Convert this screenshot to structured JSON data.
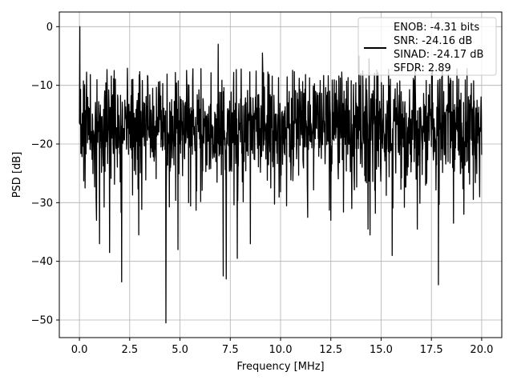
{
  "chart_data": {
    "type": "line",
    "xlabel": "Frequency [MHz]",
    "ylabel": "PSD [dB]",
    "xlim": [
      -1.0,
      21.0
    ],
    "ylim": [
      -53.0,
      2.5
    ],
    "grid": true,
    "x_ticks": [
      0.0,
      2.5,
      5.0,
      7.5,
      10.0,
      12.5,
      15.0,
      17.5,
      20.0
    ],
    "x_tick_labels": [
      "0.0",
      "2.5",
      "5.0",
      "7.5",
      "10.0",
      "12.5",
      "15.0",
      "17.5",
      "20.0"
    ],
    "y_ticks": [
      0,
      -10,
      -20,
      -30,
      -40,
      -50
    ],
    "y_tick_labels": [
      "0",
      "−10",
      "−20",
      "−30",
      "−40",
      "−50"
    ],
    "legend_position": "top-right",
    "series": [
      {
        "legend_lines": [
          "ENOB: -4.31 bits",
          "SNR: -24.16 dB",
          "SINAD: -24.17 dB",
          "SFDR: 2.89"
        ],
        "color": "#000000",
        "x_range": [
          0.0,
          20.0
        ],
        "band_top": -10,
        "band_bottom": -24,
        "peaks": [
          {
            "x": 0.02,
            "y": 0.0
          },
          {
            "x": 6.9,
            "y": -3.0
          },
          {
            "x": 9.1,
            "y": -4.5
          },
          {
            "x": 13.9,
            "y": -5.0
          },
          {
            "x": 14.4,
            "y": -5.5
          }
        ],
        "dips": [
          {
            "x": 0.28,
            "y": -27.5
          },
          {
            "x": 0.85,
            "y": -33.0
          },
          {
            "x": 1.0,
            "y": -37.0
          },
          {
            "x": 1.5,
            "y": -38.5
          },
          {
            "x": 2.1,
            "y": -43.5
          },
          {
            "x": 2.95,
            "y": -35.5
          },
          {
            "x": 4.3,
            "y": -50.5
          },
          {
            "x": 4.9,
            "y": -38.0
          },
          {
            "x": 7.15,
            "y": -42.5
          },
          {
            "x": 7.3,
            "y": -43.0
          },
          {
            "x": 7.85,
            "y": -39.5
          },
          {
            "x": 8.5,
            "y": -37.0
          },
          {
            "x": 11.35,
            "y": -32.5
          },
          {
            "x": 12.5,
            "y": -33.0
          },
          {
            "x": 14.35,
            "y": -34.5
          },
          {
            "x": 14.45,
            "y": -35.5
          },
          {
            "x": 15.55,
            "y": -39.0
          },
          {
            "x": 16.8,
            "y": -34.5
          },
          {
            "x": 17.85,
            "y": -44.0
          },
          {
            "x": 18.6,
            "y": -33.5
          },
          {
            "x": 19.9,
            "y": -29.0
          }
        ]
      }
    ]
  },
  "colors": {
    "line": "#000000",
    "grid": "#b0b0b0",
    "legend_border": "#cccccc"
  }
}
